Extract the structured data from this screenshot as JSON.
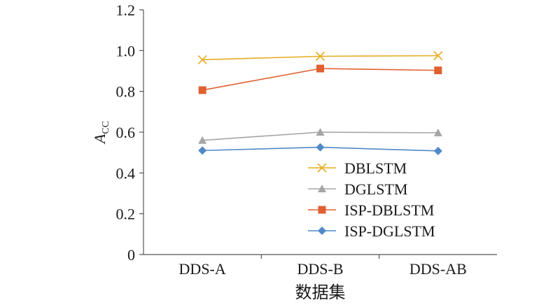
{
  "chart_data": {
    "type": "line",
    "title": "",
    "xlabel": "数据集",
    "ylabel": {
      "main": "A",
      "sub": "CC"
    },
    "categories": [
      "DDS-A",
      "DDS-B",
      "DDS-AB"
    ],
    "ylim": [
      0,
      1.2
    ],
    "yticks": [
      "0",
      "0.2",
      "0.4",
      "0.6",
      "0.8",
      "1.0",
      "1.2"
    ],
    "grid": false,
    "legend_position": "bottom-right",
    "series": [
      {
        "name": "DBLSTM",
        "values": [
          0.955,
          0.972,
          0.975
        ],
        "color": "#e6ac1f",
        "marker": "x"
      },
      {
        "name": "DGLSTM",
        "values": [
          0.56,
          0.6,
          0.597
        ],
        "color": "#a5a5a5",
        "marker": "triangle"
      },
      {
        "name": "ISP-DBLSTM",
        "values": [
          0.806,
          0.912,
          0.903
        ],
        "color": "#e06030",
        "marker": "square"
      },
      {
        "name": "ISP-DGLSTM",
        "values": [
          0.51,
          0.526,
          0.508
        ],
        "color": "#4f89c8",
        "marker": "diamond"
      }
    ]
  }
}
